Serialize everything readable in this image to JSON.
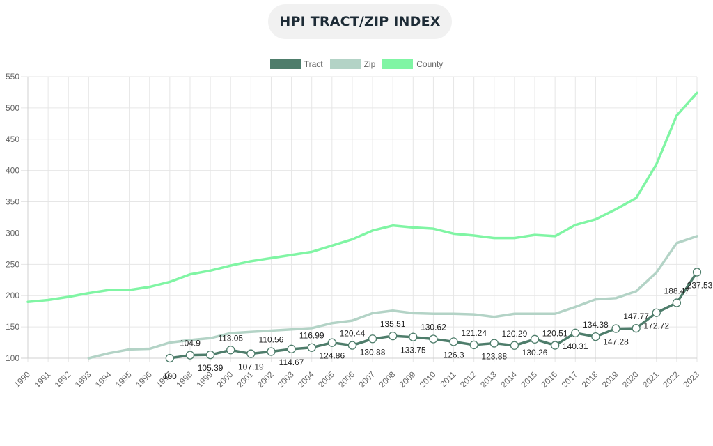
{
  "title": "HPI TRACT/ZIP INDEX",
  "chart_data": {
    "type": "line",
    "title": "HPI TRACT/ZIP INDEX",
    "x": [
      "1990",
      "1991",
      "1992",
      "1993",
      "1994",
      "1995",
      "1996",
      "1997",
      "1998",
      "1999",
      "2000",
      "2001",
      "2002",
      "2003",
      "2004",
      "2005",
      "2006",
      "2007",
      "2008",
      "2009",
      "2010",
      "2011",
      "2012",
      "2013",
      "2014",
      "2015",
      "2016",
      "2017",
      "2018",
      "2019",
      "2020",
      "2021",
      "2022",
      "2023"
    ],
    "ylim": [
      100,
      550
    ],
    "yticks": [
      100,
      150,
      200,
      250,
      300,
      350,
      400,
      450,
      500,
      550
    ],
    "grid": true,
    "legend": "top-center",
    "series": [
      {
        "name": "Tract",
        "color": "#4e7d6b",
        "values": [
          null,
          null,
          null,
          null,
          null,
          null,
          null,
          100,
          104.9,
          105.39,
          113.05,
          107.19,
          110.56,
          114.67,
          116.99,
          124.86,
          120.44,
          130.88,
          135.51,
          133.75,
          130.62,
          126.3,
          121.24,
          123.88,
          120.29,
          130.26,
          120.51,
          140.31,
          134.38,
          147.28,
          147.77,
          172.72,
          188.47,
          237.53
        ],
        "labels": [
          "",
          "",
          "",
          "",
          "",
          "",
          "",
          "100",
          "104.9",
          "105.39",
          "113.05",
          "107.19",
          "110.56",
          "114.67",
          "116.99",
          "124.86",
          "120.44",
          "130.88",
          "135.51",
          "133.75",
          "130.62",
          "126.3",
          "121.24",
          "123.88",
          "120.29",
          "130.26",
          "120.51",
          "140.31",
          "134.38",
          "147.28",
          "147.77",
          "172.72",
          "188.47",
          "237.53"
        ]
      },
      {
        "name": "Zip",
        "color": "#b3d3c6",
        "values": [
          null,
          null,
          null,
          100,
          108,
          114,
          115,
          125,
          129,
          132,
          140,
          142,
          144,
          146,
          148,
          156,
          160,
          172,
          176,
          172,
          171,
          171,
          170,
          166,
          171,
          171,
          171,
          182,
          194,
          196,
          207,
          237,
          284,
          295
        ]
      },
      {
        "name": "County",
        "color": "#80f5a4",
        "values": [
          190,
          193,
          198,
          204,
          209,
          209,
          214,
          222,
          234,
          240,
          248,
          255,
          260,
          265,
          270,
          280,
          290,
          304,
          312,
          309,
          307,
          299,
          296,
          292,
          292,
          297,
          295,
          313,
          322,
          338,
          356,
          410,
          488,
          524
        ]
      }
    ]
  }
}
